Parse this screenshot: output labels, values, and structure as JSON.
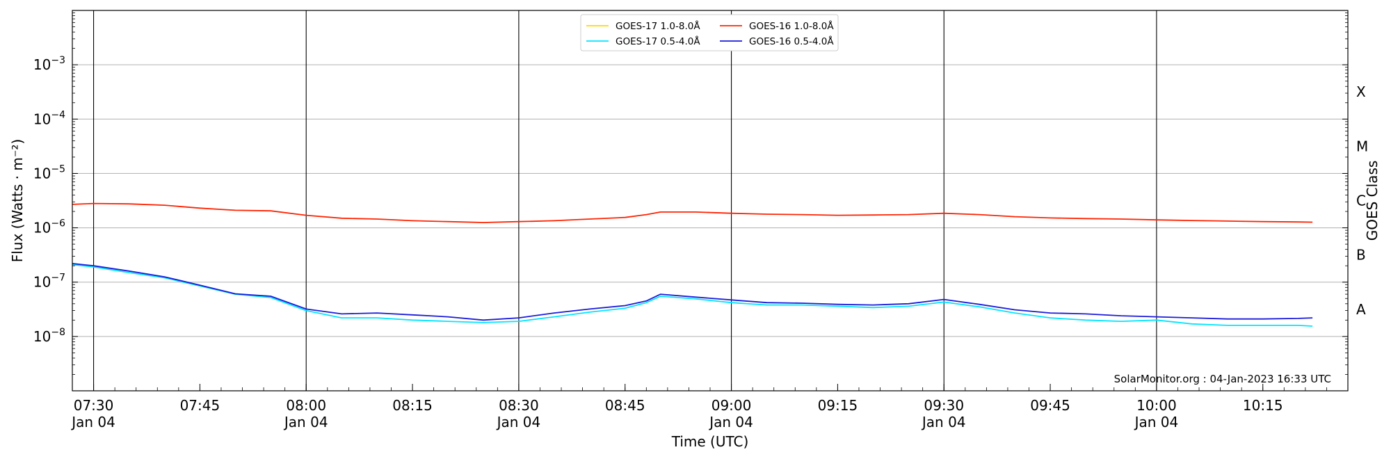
{
  "chart_data": {
    "type": "line",
    "xlabel": "Time (UTC)",
    "ylabel": "Flux (Watts · m⁻²)",
    "y2label": "GOES Class",
    "yscale": "log",
    "ylim": [
      1e-09,
      0.01
    ],
    "xlim": [
      "07:27",
      "10:27"
    ],
    "grid": "horizontal at decades, vertical at half-hours",
    "legend_placement": "top-center",
    "annotation": "SolarMonitor.org : 04-Jan-2023 16:33 UTC",
    "x_ticks": [
      {
        "time": "07:30",
        "label": "07:30",
        "sublabel": "Jan 04"
      },
      {
        "time": "07:45",
        "label": "07:45",
        "sublabel": ""
      },
      {
        "time": "08:00",
        "label": "08:00",
        "sublabel": "Jan 04"
      },
      {
        "time": "08:15",
        "label": "08:15",
        "sublabel": ""
      },
      {
        "time": "08:30",
        "label": "08:30",
        "sublabel": "Jan 04"
      },
      {
        "time": "08:45",
        "label": "08:45",
        "sublabel": ""
      },
      {
        "time": "09:00",
        "label": "09:00",
        "sublabel": "Jan 04"
      },
      {
        "time": "09:15",
        "label": "09:15",
        "sublabel": ""
      },
      {
        "time": "09:30",
        "label": "09:30",
        "sublabel": "Jan 04"
      },
      {
        "time": "09:45",
        "label": "09:45",
        "sublabel": ""
      },
      {
        "time": "10:00",
        "label": "10:00",
        "sublabel": "Jan 04"
      },
      {
        "time": "10:15",
        "label": "10:15",
        "sublabel": ""
      }
    ],
    "y_ticks": [
      {
        "value": 0.001,
        "base": "10",
        "exp": "−3"
      },
      {
        "value": 0.0001,
        "base": "10",
        "exp": "−4"
      },
      {
        "value": 1e-05,
        "base": "10",
        "exp": "−5"
      },
      {
        "value": 1e-06,
        "base": "10",
        "exp": "−6"
      },
      {
        "value": 1e-07,
        "base": "10",
        "exp": "−7"
      },
      {
        "value": 1e-08,
        "base": "10",
        "exp": "−8"
      }
    ],
    "goes_classes": [
      {
        "label": "X",
        "value": 0.000316
      },
      {
        "label": "M",
        "value": 3.16e-05
      },
      {
        "label": "C",
        "value": 3.16e-06
      },
      {
        "label": "B",
        "value": 3.16e-07
      },
      {
        "label": "A",
        "value": 3.16e-08
      }
    ],
    "series": [
      {
        "name": "GOES-17 1.0-8.0Å",
        "color": "#ffd700",
        "points": []
      },
      {
        "name": "GOES-17 0.5-4.0Å",
        "color": "#00e5ff",
        "points": [
          [
            "07:27",
            2.1e-07
          ],
          [
            "07:30",
            1.9e-07
          ],
          [
            "07:35",
            1.5e-07
          ],
          [
            "07:40",
            1.2e-07
          ],
          [
            "07:45",
            8.5e-08
          ],
          [
            "07:50",
            6e-08
          ],
          [
            "07:55",
            5.2e-08
          ],
          [
            "08:00",
            3e-08
          ],
          [
            "08:05",
            2.2e-08
          ],
          [
            "08:10",
            2.2e-08
          ],
          [
            "08:15",
            2e-08
          ],
          [
            "08:20",
            1.9e-08
          ],
          [
            "08:25",
            1.8e-08
          ],
          [
            "08:30",
            1.9e-08
          ],
          [
            "08:35",
            2.3e-08
          ],
          [
            "08:40",
            2.8e-08
          ],
          [
            "08:45",
            3.3e-08
          ],
          [
            "08:48",
            4.2e-08
          ],
          [
            "08:50",
            5.5e-08
          ],
          [
            "08:55",
            4.9e-08
          ],
          [
            "09:00",
            4.2e-08
          ],
          [
            "09:05",
            3.8e-08
          ],
          [
            "09:10",
            3.8e-08
          ],
          [
            "09:15",
            3.6e-08
          ],
          [
            "09:20",
            3.4e-08
          ],
          [
            "09:25",
            3.6e-08
          ],
          [
            "09:30",
            4.3e-08
          ],
          [
            "09:35",
            3.5e-08
          ],
          [
            "09:40",
            2.7e-08
          ],
          [
            "09:45",
            2.2e-08
          ],
          [
            "09:50",
            2e-08
          ],
          [
            "09:55",
            1.9e-08
          ],
          [
            "10:00",
            2e-08
          ],
          [
            "10:05",
            1.7e-08
          ],
          [
            "10:10",
            1.6e-08
          ],
          [
            "10:15",
            1.6e-08
          ],
          [
            "10:20",
            1.6e-08
          ],
          [
            "10:22",
            1.55e-08
          ]
        ]
      },
      {
        "name": "GOES-16 1.0-8.0Å",
        "color": "#ff2200",
        "points": [
          [
            "07:27",
            2.7e-06
          ],
          [
            "07:30",
            2.8e-06
          ],
          [
            "07:35",
            2.75e-06
          ],
          [
            "07:40",
            2.6e-06
          ],
          [
            "07:45",
            2.3e-06
          ],
          [
            "07:50",
            2.1e-06
          ],
          [
            "07:55",
            2.05e-06
          ],
          [
            "08:00",
            1.7e-06
          ],
          [
            "08:05",
            1.5e-06
          ],
          [
            "08:10",
            1.45e-06
          ],
          [
            "08:15",
            1.35e-06
          ],
          [
            "08:20",
            1.3e-06
          ],
          [
            "08:25",
            1.25e-06
          ],
          [
            "08:30",
            1.3e-06
          ],
          [
            "08:35",
            1.35e-06
          ],
          [
            "08:40",
            1.45e-06
          ],
          [
            "08:45",
            1.55e-06
          ],
          [
            "08:48",
            1.75e-06
          ],
          [
            "08:50",
            1.95e-06
          ],
          [
            "08:55",
            1.95e-06
          ],
          [
            "09:00",
            1.85e-06
          ],
          [
            "09:05",
            1.78e-06
          ],
          [
            "09:10",
            1.75e-06
          ],
          [
            "09:15",
            1.7e-06
          ],
          [
            "09:20",
            1.72e-06
          ],
          [
            "09:25",
            1.75e-06
          ],
          [
            "09:30",
            1.85e-06
          ],
          [
            "09:35",
            1.75e-06
          ],
          [
            "09:40",
            1.6e-06
          ],
          [
            "09:45",
            1.52e-06
          ],
          [
            "09:50",
            1.48e-06
          ],
          [
            "09:55",
            1.45e-06
          ],
          [
            "10:00",
            1.4e-06
          ],
          [
            "10:05",
            1.36e-06
          ],
          [
            "10:10",
            1.33e-06
          ],
          [
            "10:15",
            1.3e-06
          ],
          [
            "10:20",
            1.28e-06
          ],
          [
            "10:22",
            1.27e-06
          ]
        ]
      },
      {
        "name": "GOES-16 0.5-4.0Å",
        "color": "#1a1adb",
        "points": [
          [
            "07:27",
            2.2e-07
          ],
          [
            "07:30",
            2e-07
          ],
          [
            "07:35",
            1.6e-07
          ],
          [
            "07:40",
            1.25e-07
          ],
          [
            "07:45",
            8.8e-08
          ],
          [
            "07:50",
            6.1e-08
          ],
          [
            "07:55",
            5.5e-08
          ],
          [
            "08:00",
            3.2e-08
          ],
          [
            "08:05",
            2.6e-08
          ],
          [
            "08:10",
            2.7e-08
          ],
          [
            "08:15",
            2.5e-08
          ],
          [
            "08:20",
            2.3e-08
          ],
          [
            "08:25",
            2e-08
          ],
          [
            "08:30",
            2.2e-08
          ],
          [
            "08:35",
            2.7e-08
          ],
          [
            "08:40",
            3.2e-08
          ],
          [
            "08:45",
            3.7e-08
          ],
          [
            "08:48",
            4.5e-08
          ],
          [
            "08:50",
            6e-08
          ],
          [
            "08:55",
            5.3e-08
          ],
          [
            "09:00",
            4.7e-08
          ],
          [
            "09:05",
            4.2e-08
          ],
          [
            "09:10",
            4.1e-08
          ],
          [
            "09:15",
            3.9e-08
          ],
          [
            "09:20",
            3.8e-08
          ],
          [
            "09:25",
            4e-08
          ],
          [
            "09:30",
            4.8e-08
          ],
          [
            "09:35",
            3.9e-08
          ],
          [
            "09:40",
            3.1e-08
          ],
          [
            "09:45",
            2.7e-08
          ],
          [
            "09:50",
            2.6e-08
          ],
          [
            "09:55",
            2.4e-08
          ],
          [
            "10:00",
            2.3e-08
          ],
          [
            "10:05",
            2.2e-08
          ],
          [
            "10:10",
            2.1e-08
          ],
          [
            "10:15",
            2.1e-08
          ],
          [
            "10:20",
            2.15e-08
          ],
          [
            "10:22",
            2.2e-08
          ]
        ]
      }
    ]
  }
}
